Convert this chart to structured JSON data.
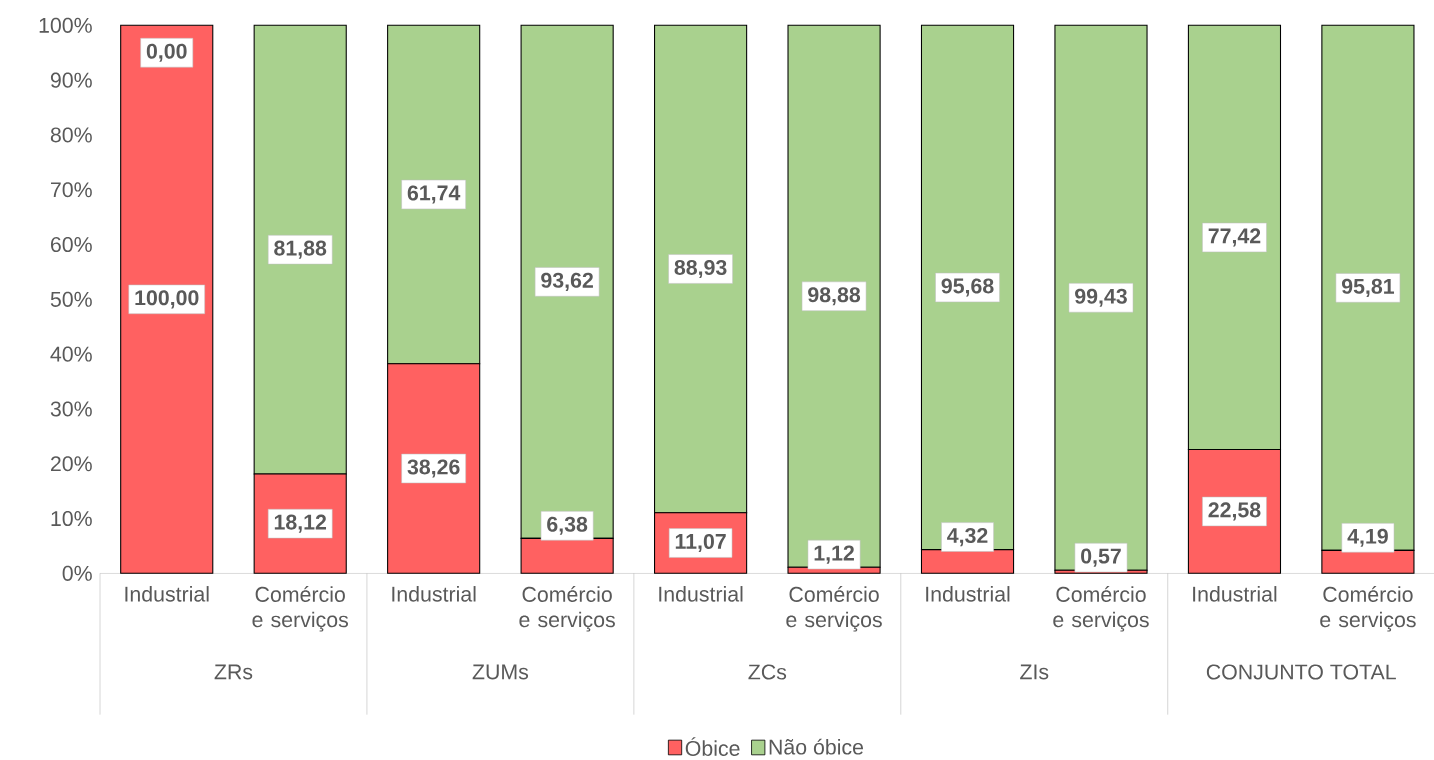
{
  "chart_data": {
    "type": "bar",
    "stacked": true,
    "categories": [
      "Industrial",
      "Comércio e serviços",
      "Industrial",
      "Comércio e serviços",
      "Industrial",
      "Comércio e serviços",
      "Industrial",
      "Comércio e serviços",
      "Industrial",
      "Comércio e serviços"
    ],
    "series": [
      {
        "name": "Óbice",
        "color": "#ff6161",
        "values": [
          100,
          18.12,
          38.26,
          6.38,
          11.07,
          1.12,
          4.32,
          0.57,
          22.58,
          4.19
        ],
        "value_labels": [
          "100,00",
          "18,12",
          "38,26",
          "6,38",
          "11,07",
          "1,12",
          "4,32",
          "0,57",
          "22,58",
          "4,19"
        ]
      },
      {
        "name": "Não óbice",
        "color": "#a9d18e",
        "values": [
          0,
          81.88,
          61.74,
          93.62,
          88.93,
          98.88,
          95.68,
          99.43,
          77.42,
          95.81
        ],
        "value_labels": [
          "0,00",
          "81,88",
          "61,74",
          "93,62",
          "88,93",
          "98,88",
          "95,68",
          "99,43",
          "77,42",
          "95,81"
        ]
      }
    ],
    "ylim": [
      0,
      100
    ],
    "yticks": [
      {
        "value": 0,
        "label": "0%"
      },
      {
        "value": 10,
        "label": "10%"
      },
      {
        "value": 20,
        "label": "20%"
      },
      {
        "value": 30,
        "label": "30%"
      },
      {
        "value": 40,
        "label": "40%"
      },
      {
        "value": 50,
        "label": "50%"
      },
      {
        "value": 60,
        "label": "60%"
      },
      {
        "value": 70,
        "label": "70%"
      },
      {
        "value": 80,
        "label": "80%"
      },
      {
        "value": 90,
        "label": "90%"
      },
      {
        "value": 100,
        "label": "100%"
      }
    ],
    "annotations": [
      "ZRs",
      "ZUMs",
      "ZCs",
      "ZIs",
      "CONJUNTO TOTAL"
    ],
    "legend": "bottom"
  }
}
